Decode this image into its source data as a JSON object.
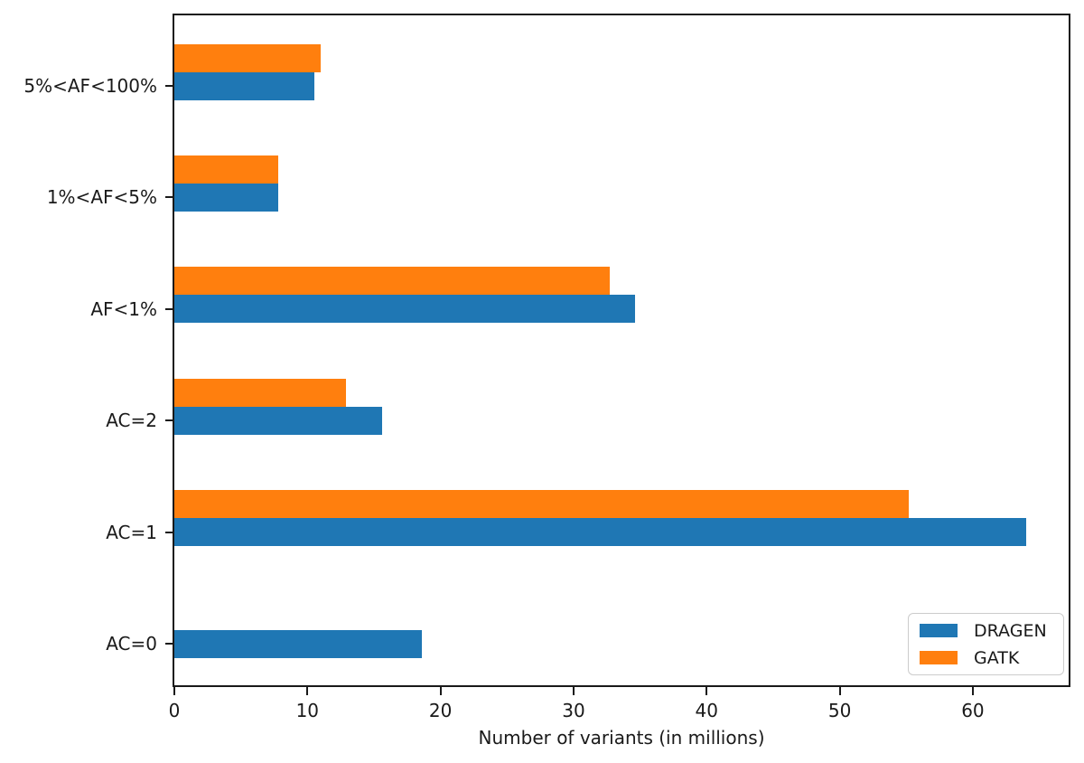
{
  "chart_data": {
    "type": "bar",
    "orientation": "horizontal",
    "title": "",
    "xlabel": "Number of variants (in millions)",
    "ylabel": "",
    "categories": [
      "5%<AF<100%",
      "1%<AF<5%",
      "AF<1%",
      "AC=2",
      "AC=1",
      "AC=0"
    ],
    "series": [
      {
        "name": "DRAGEN",
        "color": "#1f77b4",
        "values": [
          10.5,
          7.8,
          34.6,
          15.6,
          64.0,
          18.6
        ]
      },
      {
        "name": "GATK",
        "color": "#ff7f0e",
        "values": [
          11.0,
          7.8,
          32.7,
          12.9,
          55.2,
          0
        ]
      }
    ],
    "xticks": [
      0,
      10,
      20,
      30,
      40,
      50,
      60
    ],
    "xlim": [
      0,
      67.2
    ],
    "grid": false,
    "legend_position": "lower right"
  },
  "colors": {
    "axis": "#1a1a1a",
    "background": "#ffffff",
    "dragen": "#1f77b4",
    "gatk": "#ff7f0e"
  }
}
